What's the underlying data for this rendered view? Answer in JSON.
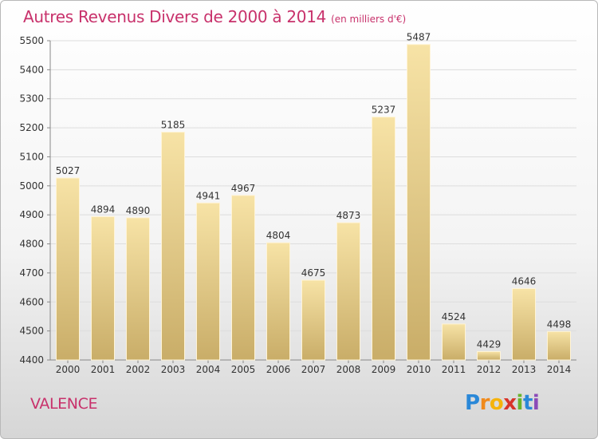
{
  "header": {
    "title": "Autres Revenus Divers de 2000 à 2014",
    "subtitle": "(en milliers d'€)"
  },
  "footer": {
    "city": "VALENCE",
    "logo_letters": [
      "P",
      "r",
      "o",
      "x",
      "i",
      "t",
      "i"
    ]
  },
  "colors": {
    "title": "#c8316b",
    "bar_light": "#f7e3a6",
    "bar_dark": "#c9ad68",
    "grid": "#dddddd"
  },
  "chart_data": {
    "type": "bar",
    "title": "Autres Revenus Divers de 2000 à 2014",
    "subtitle": "(en milliers d'€)",
    "categories": [
      "2000",
      "2001",
      "2002",
      "2003",
      "2004",
      "2005",
      "2006",
      "2007",
      "2008",
      "2009",
      "2010",
      "2011",
      "2012",
      "2013",
      "2014"
    ],
    "values": [
      5027,
      4894,
      4890,
      5185,
      4941,
      4967,
      4804,
      4675,
      4873,
      5237,
      5487,
      4524,
      4429,
      4646,
      4498
    ],
    "ylim": [
      4400,
      5500
    ],
    "yticks": [
      4400,
      4500,
      4600,
      4700,
      4800,
      4900,
      5000,
      5100,
      5200,
      5300,
      5400,
      5500
    ],
    "grid": true,
    "data_labels": true
  }
}
